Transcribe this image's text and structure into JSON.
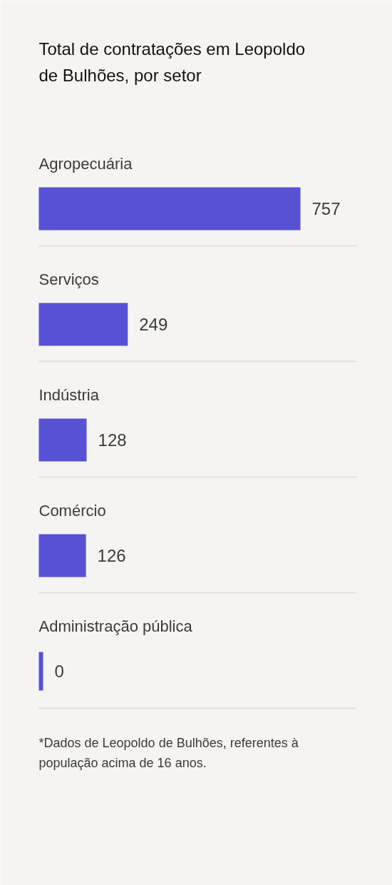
{
  "chart_data": {
    "type": "bar",
    "orientation": "horizontal",
    "title": "Total de contratações em Leopoldo de Bulhões, por setor",
    "categories": [
      "Agropecuária",
      "Serviços",
      "Indústria",
      "Comércio",
      "Administração pública"
    ],
    "values": [
      757,
      249,
      128,
      126,
      0
    ],
    "color": "#5751d3",
    "data_labels": true,
    "annotations": [
      "*Dados de Leopoldo de Bulhões, referentes à população acima de 16 anos."
    ]
  }
}
